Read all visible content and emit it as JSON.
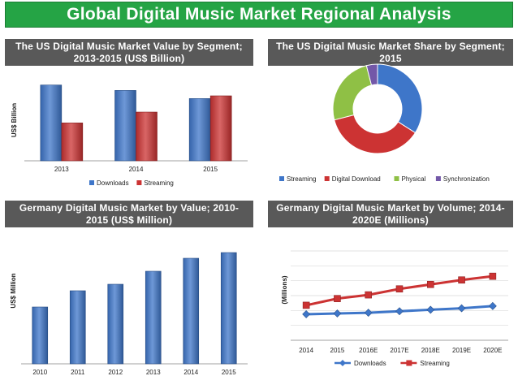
{
  "header": {
    "title": "Global Digital Music Market Regional Analysis"
  },
  "colors": {
    "banner": "#25a445",
    "panel_title_bg": "#595959",
    "blue": "#3e76c9",
    "red": "#cc3333",
    "green": "#8fc045",
    "purple": "#7358a8"
  },
  "chart_data": [
    {
      "id": "us-value",
      "type": "bar",
      "title": "The US Digital Music Market Value by Segment; 2013-2015 (US$ Billion)",
      "xlabel": "",
      "ylabel": "US$ Billion",
      "categories": [
        "2013",
        "2014",
        "2015"
      ],
      "series": [
        {
          "name": "Downloads",
          "values": [
            2.8,
            2.6,
            2.3
          ],
          "color": "#3e76c9"
        },
        {
          "name": "Streaming",
          "values": [
            1.4,
            1.8,
            2.4
          ],
          "color": "#cc3333"
        }
      ],
      "ylim": [
        0,
        3
      ],
      "legend": "bottom",
      "grid": false
    },
    {
      "id": "us-share",
      "type": "pie",
      "donut": true,
      "title": "The US Digital Music Market Share by Segment; 2015",
      "labels": [
        "Streaming",
        "Digital Download",
        "Physical",
        "Synchronization"
      ],
      "values": [
        34,
        37,
        25,
        4
      ],
      "colors": [
        "#3e76c9",
        "#cc3333",
        "#8fc045",
        "#7358a8"
      ],
      "legend": "bottom"
    },
    {
      "id": "de-value",
      "type": "bar",
      "title": "Germany Digital Music Market by Value; 2010-2015 (US$ Million)",
      "xlabel": "",
      "ylabel": "US$ Million",
      "categories": [
        "2010",
        "2011",
        "2012",
        "2013",
        "2014",
        "2015"
      ],
      "series": [
        {
          "values": [
            70,
            90,
            98,
            114,
            130,
            137
          ],
          "color": "#3e76c9"
        }
      ],
      "ylim": [
        0,
        150
      ],
      "grid": false
    },
    {
      "id": "de-volume",
      "type": "line",
      "title": "Germany Digital Music Market by Volume; 2014-2020E (Millions)",
      "xlabel": "",
      "ylabel": "(Millions)",
      "categories": [
        "2014",
        "2015",
        "2016E",
        "2017E",
        "2018E",
        "2019E",
        "2020E"
      ],
      "series": [
        {
          "name": "Downloads",
          "values": [
            35,
            36,
            37,
            39,
            41,
            43,
            46
          ],
          "color": "#3e76c9"
        },
        {
          "name": "Streaming",
          "values": [
            47,
            56,
            61,
            69,
            75,
            81,
            86
          ],
          "color": "#cc3333"
        }
      ],
      "ylim": [
        0,
        120
      ],
      "legend": "bottom",
      "grid": "horizontal"
    }
  ]
}
